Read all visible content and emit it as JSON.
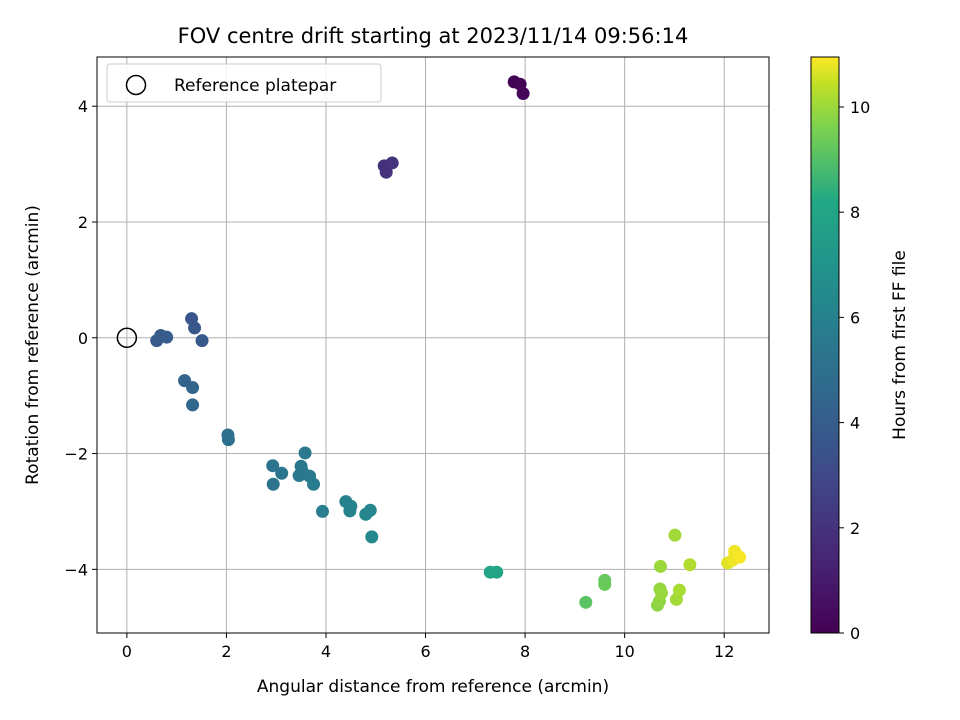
{
  "chart_data": {
    "type": "scatter",
    "title": "FOV centre drift starting at 2023/11/14 09:56:14",
    "xlabel": "Angular distance from reference (arcmin)",
    "ylabel": "Rotation from reference (arcmin)",
    "xlim": [
      -0.6,
      12.9
    ],
    "ylim": [
      -5.1,
      4.85
    ],
    "xticks": [
      0,
      2,
      4,
      6,
      8,
      10,
      12
    ],
    "yticks": [
      -4,
      -2,
      0,
      2,
      4
    ],
    "xtick_labels": [
      "0",
      "2",
      "4",
      "6",
      "8",
      "10",
      "12"
    ],
    "ytick_labels": [
      "−4",
      "−2",
      "0",
      "2",
      "4"
    ],
    "grid": true,
    "legend": {
      "placement": "top-left",
      "entries": [
        {
          "label": "Reference platepar",
          "marker": "hollow-circle"
        }
      ]
    },
    "reference_point": {
      "x": 0,
      "y": 0
    },
    "colorbar": {
      "label": "Hours from first FF file",
      "colormap": "viridis",
      "range": [
        0,
        10.95
      ],
      "ticks": [
        0,
        2,
        4,
        6,
        8,
        10
      ],
      "tick_labels": [
        "0",
        "2",
        "4",
        "6",
        "8",
        "10"
      ]
    },
    "points": [
      {
        "x": 7.78,
        "y": 4.42,
        "c": 0.05
      },
      {
        "x": 7.9,
        "y": 4.38,
        "c": 0.15
      },
      {
        "x": 7.96,
        "y": 4.22,
        "c": 0.25
      },
      {
        "x": 5.17,
        "y": 2.97,
        "c": 1.9
      },
      {
        "x": 5.21,
        "y": 2.86,
        "c": 1.95
      },
      {
        "x": 5.33,
        "y": 3.02,
        "c": 2.0
      },
      {
        "x": 1.3,
        "y": 0.33,
        "c": 3.6
      },
      {
        "x": 1.36,
        "y": 0.17,
        "c": 3.7
      },
      {
        "x": 1.51,
        "y": -0.05,
        "c": 3.8
      },
      {
        "x": 0.6,
        "y": -0.05,
        "c": 3.9
      },
      {
        "x": 0.68,
        "y": 0.04,
        "c": 3.95
      },
      {
        "x": 0.8,
        "y": 0.01,
        "c": 4.0
      },
      {
        "x": 1.16,
        "y": -0.74,
        "c": 4.4
      },
      {
        "x": 1.32,
        "y": -0.86,
        "c": 4.5
      },
      {
        "x": 1.32,
        "y": -1.16,
        "c": 4.55
      },
      {
        "x": 2.03,
        "y": -1.68,
        "c": 5.0
      },
      {
        "x": 2.04,
        "y": -1.76,
        "c": 5.05
      },
      {
        "x": 2.93,
        "y": -2.21,
        "c": 5.2
      },
      {
        "x": 2.94,
        "y": -2.53,
        "c": 5.25
      },
      {
        "x": 3.11,
        "y": -2.34,
        "c": 5.3
      },
      {
        "x": 3.46,
        "y": -2.38,
        "c": 5.4
      },
      {
        "x": 3.5,
        "y": -2.22,
        "c": 5.45
      },
      {
        "x": 3.52,
        "y": -2.3,
        "c": 5.5
      },
      {
        "x": 3.58,
        "y": -1.99,
        "c": 5.55
      },
      {
        "x": 3.67,
        "y": -2.39,
        "c": 5.6
      },
      {
        "x": 3.75,
        "y": -2.53,
        "c": 5.65
      },
      {
        "x": 3.93,
        "y": -3.0,
        "c": 5.75
      },
      {
        "x": 4.4,
        "y": -2.83,
        "c": 6.0
      },
      {
        "x": 4.48,
        "y": -2.99,
        "c": 6.05
      },
      {
        "x": 4.5,
        "y": -2.91,
        "c": 6.1
      },
      {
        "x": 4.8,
        "y": -3.05,
        "c": 6.25
      },
      {
        "x": 4.89,
        "y": -2.98,
        "c": 6.3
      },
      {
        "x": 4.92,
        "y": -3.44,
        "c": 6.35
      },
      {
        "x": 7.3,
        "y": -4.05,
        "c": 7.95
      },
      {
        "x": 7.43,
        "y": -4.05,
        "c": 8.0
      },
      {
        "x": 9.22,
        "y": -4.57,
        "c": 9.1
      },
      {
        "x": 9.6,
        "y": -4.19,
        "c": 9.25
      },
      {
        "x": 9.6,
        "y": -4.26,
        "c": 9.3
      },
      {
        "x": 10.66,
        "y": -4.62,
        "c": 9.8
      },
      {
        "x": 10.7,
        "y": -4.55,
        "c": 9.85
      },
      {
        "x": 10.71,
        "y": -4.34,
        "c": 9.9
      },
      {
        "x": 10.74,
        "y": -4.41,
        "c": 9.95
      },
      {
        "x": 10.72,
        "y": -3.95,
        "c": 10.0
      },
      {
        "x": 11.01,
        "y": -3.41,
        "c": 10.05
      },
      {
        "x": 11.04,
        "y": -4.52,
        "c": 10.1
      },
      {
        "x": 11.1,
        "y": -4.36,
        "c": 10.15
      },
      {
        "x": 11.31,
        "y": -3.92,
        "c": 10.25
      },
      {
        "x": 12.07,
        "y": -3.89,
        "c": 10.7
      },
      {
        "x": 12.17,
        "y": -3.84,
        "c": 10.8
      },
      {
        "x": 12.21,
        "y": -3.69,
        "c": 10.85
      },
      {
        "x": 12.31,
        "y": -3.79,
        "c": 10.9
      }
    ]
  }
}
